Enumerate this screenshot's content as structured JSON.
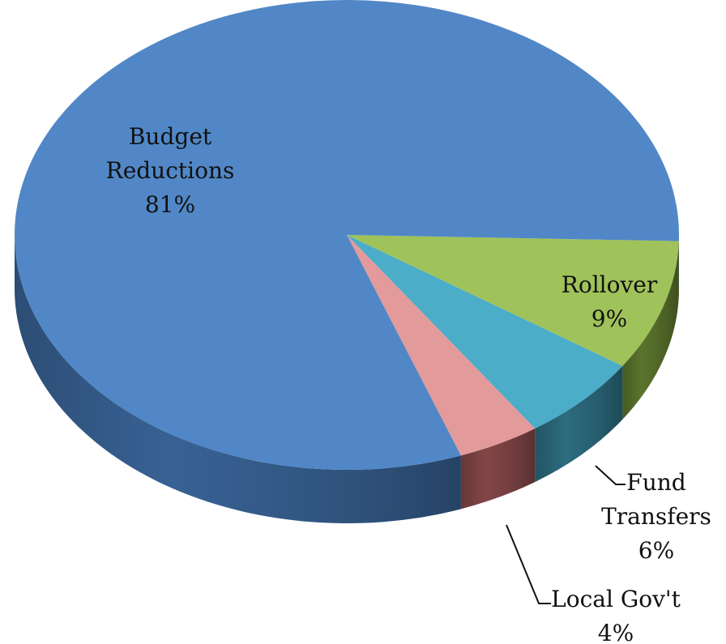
{
  "chart_data": {
    "type": "pie",
    "title": "",
    "series": [
      {
        "name": "Budget Reductions",
        "label_lines": [
          "Budget",
          "Reductions"
        ],
        "value": 81,
        "value_label": "81%",
        "color": "#5187C6",
        "side_color": "#3B679C"
      },
      {
        "name": "Rollover",
        "label_lines": [
          "Rollover"
        ],
        "value": 9,
        "value_label": "9%",
        "color": "#9FC25A",
        "side_color": "#5F7A2E"
      },
      {
        "name": "Fund Transfers",
        "label_lines": [
          "Fund",
          "Transfers"
        ],
        "value": 6,
        "value_label": "6%",
        "color": "#4BADC8",
        "side_color": "#2E7285"
      },
      {
        "name": "Local Gov't",
        "label_lines": [
          "Local Gov't"
        ],
        "value": 4,
        "value_label": "4%",
        "color": "#E39A9B",
        "side_color": "#8A4A4B"
      }
    ],
    "style": "3d-pie",
    "legend": "none",
    "data_labels": "name-and-percent"
  }
}
